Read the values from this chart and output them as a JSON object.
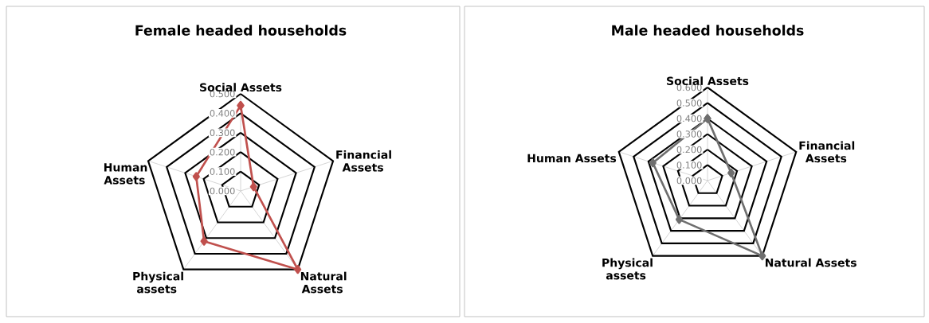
{
  "chart_data": [
    {
      "type": "radar",
      "title": "Female headed households",
      "categories": [
        "Social Assets",
        "Financial Assets",
        "Natural Assets",
        "Physical assets",
        "Human Assets"
      ],
      "ylim": [
        0,
        0.5
      ],
      "yticks": [
        {
          "value": 0,
          "label": "0.000"
        },
        {
          "value": 0.1,
          "label": "0.100"
        },
        {
          "value": 0.2,
          "label": "0.200"
        },
        {
          "value": 0.3,
          "label": "0.300"
        },
        {
          "value": 0.4,
          "label": "0.400"
        },
        {
          "value": 0.5,
          "label": "0.500"
        }
      ],
      "grid": true,
      "marker": "diamond",
      "series": [
        {
          "color": "#c0504d",
          "values": [
            0.44,
            0.07,
            0.5,
            0.32,
            0.24
          ]
        }
      ]
    },
    {
      "type": "radar",
      "title": "Male headed households",
      "categories": [
        "Social Assets",
        "Financial Assets",
        "Natural Assets",
        "Physical assets",
        "Human Assets"
      ],
      "ylim": [
        0,
        0.6
      ],
      "yticks": [
        {
          "value": 0,
          "label": "0.000"
        },
        {
          "value": 0.1,
          "label": "0.100"
        },
        {
          "value": 0.2,
          "label": "0.200"
        },
        {
          "value": 0.3,
          "label": "0.300"
        },
        {
          "value": 0.4,
          "label": "0.400"
        },
        {
          "value": 0.5,
          "label": "0.500"
        },
        {
          "value": 0.6,
          "label": "0.600"
        }
      ],
      "grid": true,
      "marker": "diamond",
      "series": [
        {
          "color": "#6e6e6e",
          "values": [
            0.4,
            0.16,
            0.6,
            0.31,
            0.37
          ]
        }
      ]
    }
  ]
}
